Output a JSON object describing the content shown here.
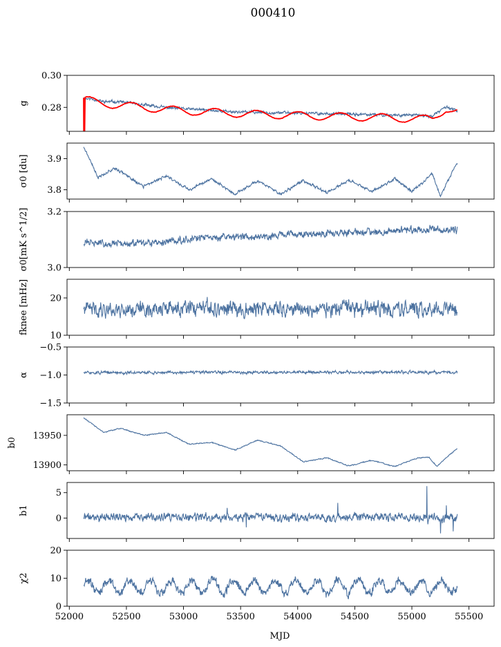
{
  "figure": {
    "title": "000410"
  },
  "chart_data": {
    "type": "line",
    "title": "000410",
    "xlabel": "MJD",
    "xlim": [
      51980,
      55720
    ],
    "xticks": [
      52000,
      52500,
      53000,
      53500,
      54000,
      54500,
      55000,
      55500
    ],
    "x_start": 52125,
    "x_end": 55400,
    "series_color": "#4c72a0",
    "model_color": "#ff0000",
    "panels": [
      {
        "id": "g",
        "ylabel": "g",
        "ylim": [
          0.265,
          0.3
        ],
        "yticks": [
          {
            "v": 0.28,
            "t": "0.28"
          },
          {
            "v": 0.3,
            "t": "0.30"
          }
        ],
        "series": [
          {
            "name": "g",
            "anchors": [
              [
                52125,
                0.2856
              ],
              [
                52200,
                0.2852
              ],
              [
                52300,
                0.2835
              ],
              [
                52450,
                0.2835
              ],
              [
                52650,
                0.2815
              ],
              [
                52900,
                0.2795
              ],
              [
                53150,
                0.2785
              ],
              [
                53450,
                0.2772
              ],
              [
                53700,
                0.2768
              ],
              [
                53950,
                0.2766
              ],
              [
                54150,
                0.2762
              ],
              [
                54450,
                0.2757
              ],
              [
                54750,
                0.2752
              ],
              [
                55000,
                0.2752
              ],
              [
                55180,
                0.2745
              ],
              [
                55300,
                0.2805
              ],
              [
                55400,
                0.2775
              ]
            ],
            "noise": 0.0006,
            "seed": 11
          },
          {
            "name": "model",
            "anchors": [
              [
                52125,
                0.2848
              ],
              [
                52400,
                0.2815
              ],
              [
                53000,
                0.2778
              ],
              [
                53600,
                0.2758
              ],
              [
                54200,
                0.2745
              ],
              [
                54800,
                0.2735
              ],
              [
                55180,
                0.2725
              ],
              [
                55300,
                0.2795
              ],
              [
                55400,
                0.2775
              ]
            ],
            "osc": {
              "amp": 0.0024,
              "period": 365.25,
              "phase": 0.6
            },
            "noise": 0.0001,
            "seed": 3
          }
        ]
      },
      {
        "id": "sigma0_du",
        "ylabel": "σ0 [du]",
        "ylim": [
          3.77,
          3.95
        ],
        "yticks": [
          {
            "v": 3.8,
            "t": "3.8"
          },
          {
            "v": 3.9,
            "t": "3.9"
          }
        ],
        "series": [
          {
            "name": "sigma0",
            "anchors": [
              [
                52125,
                3.94
              ],
              [
                52250,
                3.84
              ],
              [
                52400,
                3.87
              ],
              [
                52650,
                3.81
              ],
              [
                52850,
                3.845
              ],
              [
                53050,
                3.8
              ],
              [
                53250,
                3.835
              ],
              [
                53450,
                3.785
              ],
              [
                53650,
                3.83
              ],
              [
                53850,
                3.785
              ],
              [
                54050,
                3.83
              ],
              [
                54250,
                3.79
              ],
              [
                54450,
                3.83
              ],
              [
                54650,
                3.795
              ],
              [
                54850,
                3.835
              ],
              [
                55000,
                3.795
              ],
              [
                55180,
                3.85
              ],
              [
                55250,
                3.78
              ],
              [
                55330,
                3.84
              ],
              [
                55400,
                3.89
              ]
            ],
            "noise": 0.003,
            "seed": 21
          }
        ]
      },
      {
        "id": "sigma0_mk",
        "ylabel": "σ0[mK s^1/2]",
        "ylim": [
          3.0,
          3.2
        ],
        "yticks": [
          {
            "v": 3.0,
            "t": "3.0"
          },
          {
            "v": 3.2,
            "t": "3.2"
          }
        ],
        "series": [
          {
            "name": "sigma0_mk",
            "anchors": [
              [
                52125,
                3.09
              ],
              [
                52400,
                3.085
              ],
              [
                52700,
                3.085
              ],
              [
                52900,
                3.095
              ],
              [
                53100,
                3.105
              ],
              [
                53500,
                3.11
              ],
              [
                53800,
                3.115
              ],
              [
                54100,
                3.12
              ],
              [
                54400,
                3.125
              ],
              [
                54800,
                3.13
              ],
              [
                55100,
                3.135
              ],
              [
                55400,
                3.135
              ]
            ],
            "noise": 0.009,
            "seed": 31
          }
        ]
      },
      {
        "id": "fknee",
        "ylabel": "fknee [mHz]",
        "ylim": [
          10,
          25
        ],
        "yticks": [
          {
            "v": 10,
            "t": "10"
          },
          {
            "v": 20,
            "t": "20"
          }
        ],
        "series": [
          {
            "name": "fknee",
            "anchors": [
              [
                52125,
                17
              ],
              [
                53000,
                17
              ],
              [
                54000,
                17
              ],
              [
                55400,
                17
              ]
            ],
            "noise": 1.4,
            "seed": 41
          }
        ]
      },
      {
        "id": "alpha",
        "ylabel": "α",
        "ylim": [
          -1.5,
          -0.5
        ],
        "yticks": [
          {
            "v": -1.5,
            "t": "−1.5"
          },
          {
            "v": -1.0,
            "t": "−1.0"
          },
          {
            "v": -0.5,
            "t": "−0.5"
          }
        ],
        "series": [
          {
            "name": "alpha",
            "anchors": [
              [
                52125,
                -0.96
              ],
              [
                53000,
                -0.955
              ],
              [
                54000,
                -0.95
              ],
              [
                55400,
                -0.955
              ]
            ],
            "noise": 0.018,
            "seed": 51
          }
        ]
      },
      {
        "id": "b0",
        "ylabel": "b0",
        "ylim": [
          13890,
          13985
        ],
        "yticks": [
          {
            "v": 13900,
            "t": "13900"
          },
          {
            "v": 13950,
            "t": "13950"
          }
        ],
        "series": [
          {
            "name": "b0",
            "anchors": [
              [
                52125,
                13980
              ],
              [
                52300,
                13955
              ],
              [
                52450,
                13962
              ],
              [
                52650,
                13950
              ],
              [
                52850,
                13955
              ],
              [
                53050,
                13935
              ],
              [
                53250,
                13938
              ],
              [
                53450,
                13925
              ],
              [
                53650,
                13942
              ],
              [
                53850,
                13932
              ],
              [
                54050,
                13905
              ],
              [
                54250,
                13912
              ],
              [
                54450,
                13898
              ],
              [
                54650,
                13908
              ],
              [
                54850,
                13897
              ],
              [
                55050,
                13912
              ],
              [
                55150,
                13913
              ],
              [
                55220,
                13897
              ],
              [
                55300,
                13912
              ],
              [
                55400,
                13928
              ]
            ],
            "noise": 0.6,
            "seed": 61
          }
        ]
      },
      {
        "id": "b1",
        "ylabel": "b1",
        "ylim": [
          -4,
          7
        ],
        "yticks": [
          {
            "v": 0,
            "t": "0"
          },
          {
            "v": 5,
            "t": "5"
          }
        ],
        "series": [
          {
            "name": "b1",
            "anchors": [
              [
                52125,
                0.2
              ],
              [
                53000,
                0.1
              ],
              [
                54000,
                0.2
              ],
              [
                55000,
                0.1
              ],
              [
                55400,
                0
              ]
            ],
            "noise": 0.55,
            "seed": 71,
            "spikes": [
              [
                55130,
                6.3
              ],
              [
                55140,
                -1.2
              ],
              [
                55250,
                -3.0
              ],
              [
                55300,
                2.5
              ],
              [
                53550,
                -1.8
              ],
              [
                53380,
                2.0
              ],
              [
                54350,
                3.0
              ],
              [
                55360,
                -2.6
              ]
            ]
          }
        ]
      },
      {
        "id": "chi2",
        "ylabel": "χ2",
        "ylim": [
          0,
          20
        ],
        "yticks": [
          {
            "v": 0,
            "t": "0"
          },
          {
            "v": 10,
            "t": "10"
          },
          {
            "v": 20,
            "t": "20"
          }
        ],
        "series": [
          {
            "name": "chi2",
            "anchors": [
              [
                52125,
                7
              ],
              [
                55400,
                7
              ]
            ],
            "osc": {
              "amp": 2.3,
              "period": 182.6,
              "phase": 0.4
            },
            "noise": 1.1,
            "seed": 81
          }
        ]
      }
    ]
  }
}
